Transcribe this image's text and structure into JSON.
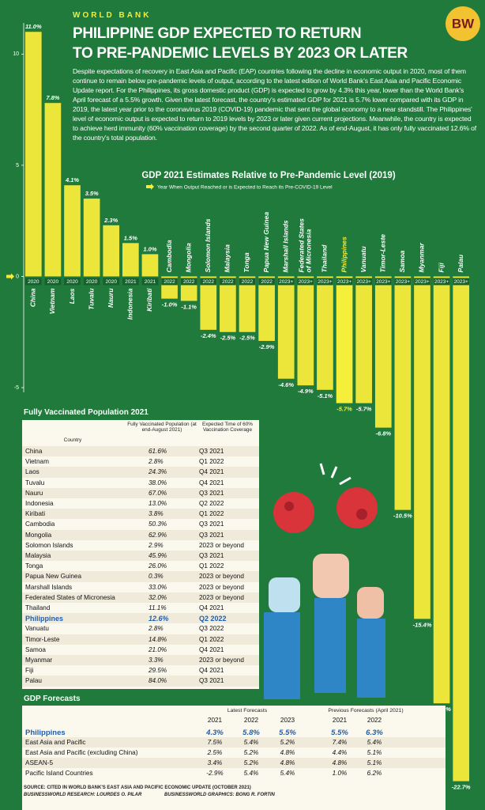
{
  "header": {
    "kicker": "WORLD BANK",
    "title_line1": "PHILIPPINE GDP EXPECTED TO RETURN",
    "title_line2": "TO PRE-PANDEMIC LEVELS BY 2023 OR LATER",
    "logo": "BW",
    "body": "Despite expectations of recovery in East Asia and Pacific (EAP) countries following the decline in economic output in 2020, most of them continue to remain below pre-pandemic levels of output, according to the latest edition of World Bank's East Asia and Pacific Economic Update report. For the Philippines, its gross domestic product (GDP) is expected to grow by 4.3% this year, lower than the World Bank's April forecast of a 5.5% growth. Given the latest forecast, the country's estimated GDP for 2021 is 5.7% lower compared with its GDP in 2019, the latest year prior to the coronavirus 2019 (COVID-19) pandemic that sent the global economy to a near standstill. The Philippines' level of economic output is expected to return to 2019 levels by 2023 or later given current projections. Meanwhile, the country is expected to achieve herd immunity (60% vaccination coverage) by the second quarter of 2022. As of end-August, it has only fully vaccinated 12.6% of the country's total population."
  },
  "chart_data": {
    "type": "bar",
    "title": "GDP 2021 Estimates Relative to Pre-Pandemic Level (2019)",
    "legend_note": "Year When Output Reached or is Expected to Reach its Pre-COVID-19 Level",
    "categories": [
      "China",
      "Vietnam",
      "Laos",
      "Tuvalu",
      "Nauru",
      "Indonesia",
      "Kiribati",
      "Cambodia",
      "Mongolia",
      "Solomon Islands",
      "Malaysia",
      "Tonga",
      "Papua New Guinea",
      "Marshall Islands",
      "Federated States of Micronesia",
      "Thailand",
      "Philippines",
      "Vanuatu",
      "Timor-Leste",
      "Samoa",
      "Myanmar",
      "Fiji",
      "Palau"
    ],
    "values": [
      11.0,
      7.8,
      4.1,
      3.5,
      2.3,
      1.5,
      1.0,
      -1.0,
      -1.1,
      -2.4,
      -2.5,
      -2.5,
      -2.9,
      -4.6,
      -4.9,
      -5.1,
      -5.7,
      -5.7,
      -6.8,
      -10.5,
      -15.4,
      -19.2,
      -22.7
    ],
    "value_labels": [
      "11.0%",
      "7.8%",
      "4.1%",
      "3.5%",
      "2.3%",
      "1.5%",
      "1.0%",
      "-1.0%",
      "-1.1%",
      "-2.4%",
      "-2.5%",
      "-2.5%",
      "-2.9%",
      "-4.6%",
      "-4.9%",
      "-5.1%",
      "-5.7%",
      "-5.7%",
      "-6.8%",
      "-10.5%",
      "-15.4%",
      "-19.2%",
      "-22.7%"
    ],
    "years": [
      "2020",
      "2020",
      "2020",
      "2020",
      "2020",
      "2021",
      "2021",
      "2022",
      "2022",
      "2022",
      "2022",
      "2022",
      "2022",
      "2023+",
      "2023+",
      "2023+",
      "2023+",
      "2023+",
      "2023+",
      "2023+",
      "2023+",
      "2023+",
      "2023+"
    ],
    "highlight_index": 16,
    "color": "#ece63a",
    "highlight_color": "#f5ef3a",
    "ylim": [
      -23,
      11.4
    ],
    "yticks": [
      10,
      5,
      0,
      -5
    ]
  },
  "vaccination_table": {
    "title": "Fully Vaccinated Population 2021",
    "columns": [
      "Country",
      "Fully Vaccinated Population (at end-August 2021)",
      "Expected Time of 60% Vaccination Coverage"
    ],
    "highlight_row": 16,
    "rows": [
      [
        "China",
        "61.6%",
        "Q3 2021"
      ],
      [
        "Vietnam",
        "2.8%",
        "Q1 2022"
      ],
      [
        "Laos",
        "24.3%",
        "Q4 2021"
      ],
      [
        "Tuvalu",
        "38.0%",
        "Q4 2021"
      ],
      [
        "Nauru",
        "67.0%",
        "Q3 2021"
      ],
      [
        "Indonesia",
        "13.0%",
        "Q2 2022"
      ],
      [
        "Kiribati",
        "3.8%",
        "Q1 2022"
      ],
      [
        "Cambodia",
        "50.3%",
        "Q3 2021"
      ],
      [
        "Mongolia",
        "62.9%",
        "Q3 2021"
      ],
      [
        "Solomon Islands",
        "2.9%",
        "2023 or beyond"
      ],
      [
        "Malaysia",
        "45.9%",
        "Q3 2021"
      ],
      [
        "Tonga",
        "26.0%",
        "Q1 2022"
      ],
      [
        "Papua New Guinea",
        "0.3%",
        "2023 or beyond"
      ],
      [
        "Marshall Islands",
        "33.0%",
        "2023 or beyond"
      ],
      [
        "Federated States of Micronesia",
        "32.0%",
        "2023 or beyond"
      ],
      [
        "Thailand",
        "11.1%",
        "Q4 2021"
      ],
      [
        "Philippines",
        "12.6%",
        "Q2 2022"
      ],
      [
        "Vanuatu",
        "2.8%",
        "Q3 2022"
      ],
      [
        "Timor-Leste",
        "14.8%",
        "Q1 2022"
      ],
      [
        "Samoa",
        "21.0%",
        "Q4 2021"
      ],
      [
        "Myanmar",
        "3.3%",
        "2023 or beyond"
      ],
      [
        "Fiji",
        "29.5%",
        "Q4 2021"
      ],
      [
        "Palau",
        "84.0%",
        "Q3 2021"
      ]
    ]
  },
  "forecast_table": {
    "title": "GDP Forecasts",
    "group_latest": "Latest Forecasts",
    "group_previous": "Previous Forecasts (April 2021)",
    "years": [
      "2021",
      "2022",
      "2023",
      "2021",
      "2022"
    ],
    "highlight_row": 0,
    "rows": [
      [
        "Philippines",
        "4.3%",
        "5.8%",
        "5.5%",
        "5.5%",
        "6.3%"
      ],
      [
        "East Asia and Pacific",
        "7.5%",
        "5.4%",
        "5.2%",
        "7.4%",
        "5.4%"
      ],
      [
        "East Asia and Pacific (excluding China)",
        "2.5%",
        "5.2%",
        "4.8%",
        "4.4%",
        "5.1%"
      ],
      [
        "ASEAN-5",
        "3.4%",
        "5.2%",
        "4.8%",
        "4.8%",
        "5.1%"
      ],
      [
        "Pacific Island Countries",
        "-2.9%",
        "5.4%",
        "5.4%",
        "1.0%",
        "6.2%"
      ]
    ]
  },
  "footer": {
    "source": "SOURCE: CITED IN WORLD BANK'S EAST ASIA AND PACIFIC ECONOMIC UPDATE (OCTOBER 2021)",
    "research": "BUSINESSWORLD RESEARCH: LOURDES O. PILAR",
    "graphics": "BUSINESSWORLD GRAPHICS: BONG R. FORTIN"
  }
}
